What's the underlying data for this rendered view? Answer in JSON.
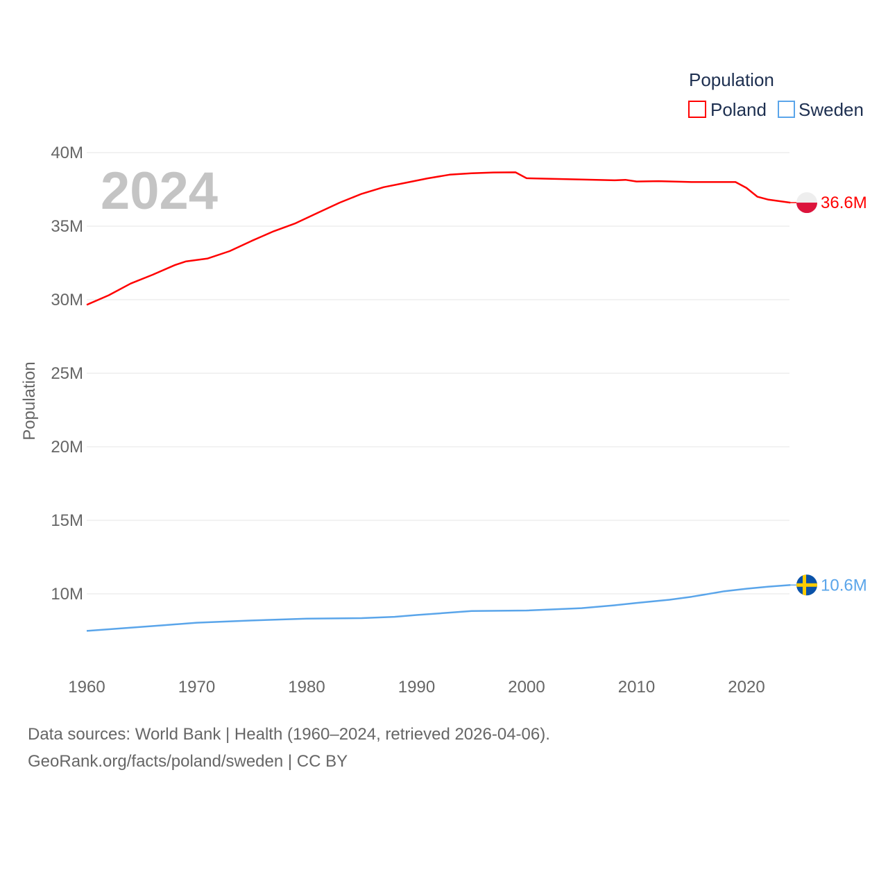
{
  "chart_data": {
    "type": "line",
    "ylabel": "Population",
    "xlabel": "",
    "year_label": "2024",
    "legend": {
      "title": "Population",
      "position": "top-right"
    },
    "xlim": [
      1960,
      2024
    ],
    "ylim": [
      5,
      40
    ],
    "x_ticks": [
      "1960",
      "1970",
      "1980",
      "1990",
      "2000",
      "2010",
      "2020"
    ],
    "y_ticks": [
      {
        "v": 10,
        "label": "10M"
      },
      {
        "v": 15,
        "label": "15M"
      },
      {
        "v": 20,
        "label": "20M"
      },
      {
        "v": 25,
        "label": "25M"
      },
      {
        "v": 30,
        "label": "30M"
      },
      {
        "v": 35,
        "label": "35M"
      },
      {
        "v": 40,
        "label": "40M"
      }
    ],
    "grid": true,
    "series": [
      {
        "name": "Poland",
        "color": "#ff0000",
        "end_label": "36.6M",
        "flag": "poland",
        "points": [
          [
            1960,
            29.65
          ],
          [
            1962,
            30.3
          ],
          [
            1964,
            31.1
          ],
          [
            1966,
            31.7
          ],
          [
            1968,
            32.35
          ],
          [
            1969,
            32.6
          ],
          [
            1971,
            32.8
          ],
          [
            1973,
            33.3
          ],
          [
            1975,
            34.0
          ],
          [
            1977,
            34.65
          ],
          [
            1979,
            35.2
          ],
          [
            1981,
            35.9
          ],
          [
            1983,
            36.6
          ],
          [
            1985,
            37.2
          ],
          [
            1987,
            37.65
          ],
          [
            1989,
            37.95
          ],
          [
            1991,
            38.25
          ],
          [
            1993,
            38.5
          ],
          [
            1995,
            38.6
          ],
          [
            1997,
            38.65
          ],
          [
            1999,
            38.66
          ],
          [
            2000,
            38.26
          ],
          [
            2005,
            38.17
          ],
          [
            2008,
            38.12
          ],
          [
            2009,
            38.15
          ],
          [
            2010,
            38.04
          ],
          [
            2012,
            38.06
          ],
          [
            2015,
            38.0
          ],
          [
            2019,
            38.0
          ],
          [
            2020,
            37.6
          ],
          [
            2021,
            37.0
          ],
          [
            2022,
            36.8
          ],
          [
            2024,
            36.6
          ]
        ]
      },
      {
        "name": "Sweden",
        "color": "#5aa5ea",
        "end_label": "10.6M",
        "flag": "sweden",
        "points": [
          [
            1960,
            7.48
          ],
          [
            1964,
            7.7
          ],
          [
            1967,
            7.87
          ],
          [
            1970,
            8.04
          ],
          [
            1975,
            8.19
          ],
          [
            1980,
            8.31
          ],
          [
            1985,
            8.35
          ],
          [
            1988,
            8.44
          ],
          [
            1990,
            8.56
          ],
          [
            1995,
            8.83
          ],
          [
            2000,
            8.87
          ],
          [
            2005,
            9.03
          ],
          [
            2008,
            9.22
          ],
          [
            2010,
            9.38
          ],
          [
            2013,
            9.6
          ],
          [
            2015,
            9.8
          ],
          [
            2018,
            10.18
          ],
          [
            2020,
            10.35
          ],
          [
            2022,
            10.49
          ],
          [
            2024,
            10.6
          ]
        ]
      }
    ]
  },
  "footer": {
    "line1": "Data sources: World Bank | Health (1960–2024, retrieved 2026-04-06).",
    "line2": "GeoRank.org/facts/poland/sweden | CC BY"
  }
}
